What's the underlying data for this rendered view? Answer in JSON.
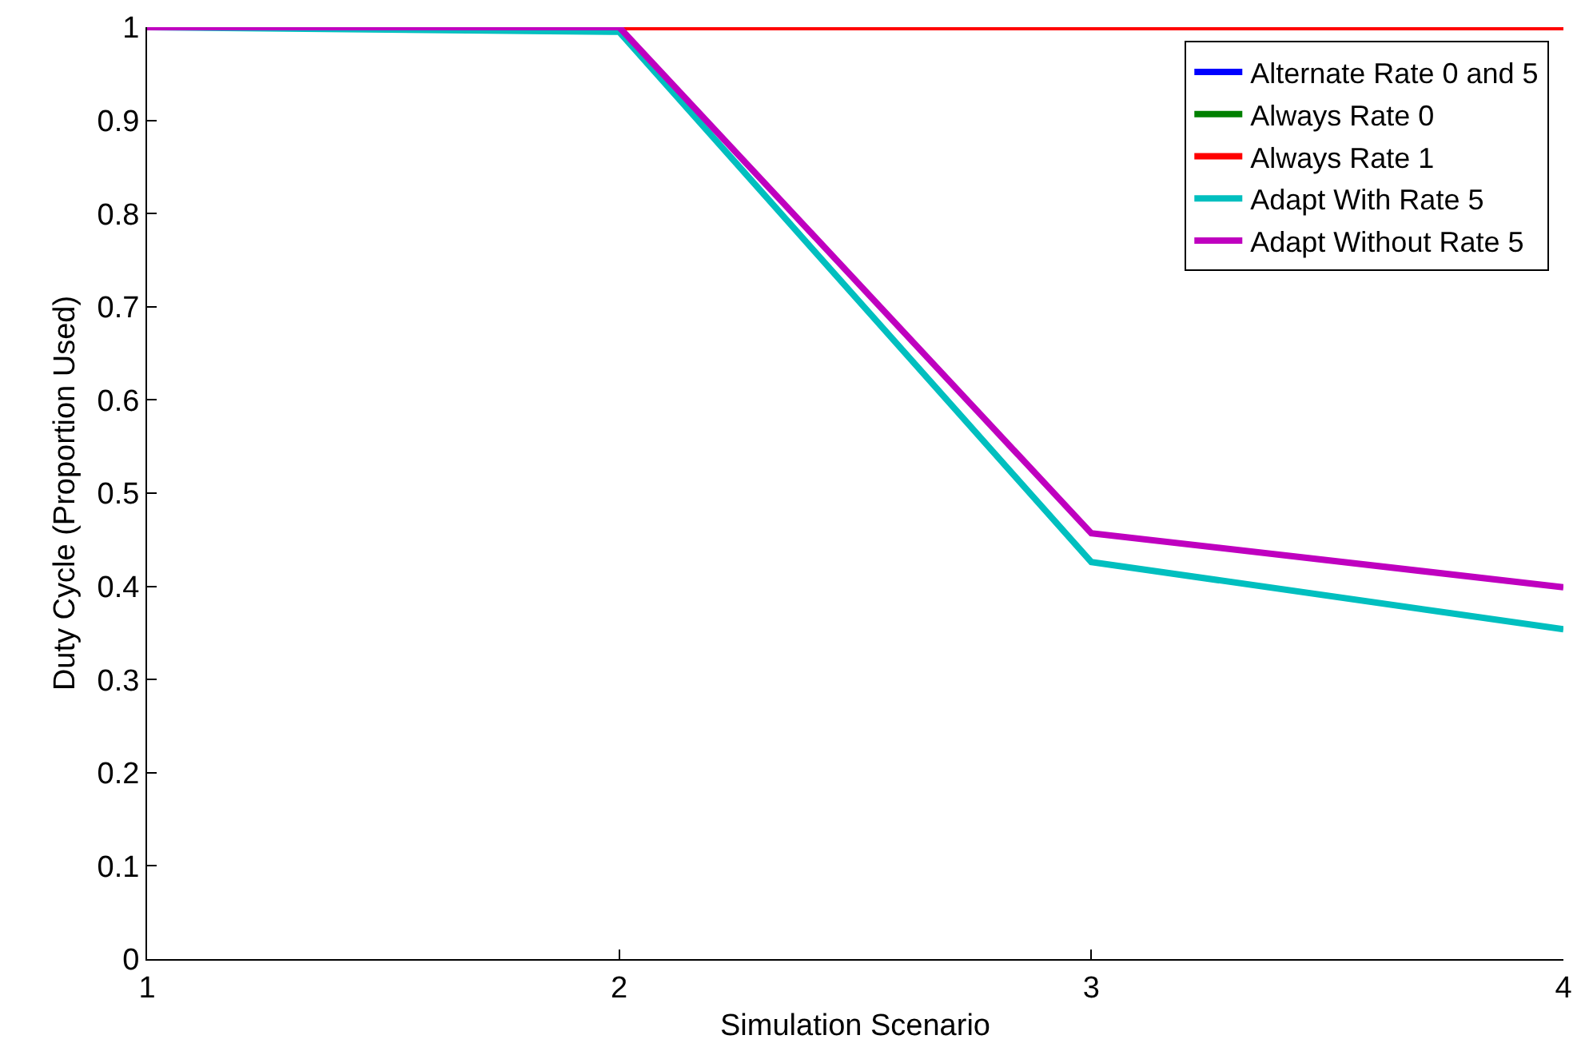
{
  "chart_data": {
    "type": "line",
    "xlabel": "Simulation Scenario",
    "ylabel": "Duty Cycle (Proportion Used)",
    "x": [
      1,
      2,
      3,
      4
    ],
    "series": [
      {
        "name": "Alternate Rate 0 and 5",
        "color": "#0000ff",
        "values": [
          null,
          null,
          null,
          null
        ]
      },
      {
        "name": "Always Rate 0",
        "color": "#008000",
        "values": [
          null,
          null,
          null,
          null
        ]
      },
      {
        "name": "Always Rate 1",
        "color": "#ff0000",
        "values": [
          1,
          1,
          1,
          1
        ]
      },
      {
        "name": "Adapt With Rate 5",
        "color": "#00bfbf",
        "values": [
          1,
          0.995,
          0.426,
          0.354
        ]
      },
      {
        "name": "Adapt Without Rate 5",
        "color": "#bf00bf",
        "values": [
          1,
          1,
          0.457,
          0.399
        ]
      }
    ],
    "xlim": [
      1,
      4
    ],
    "xticks": [
      1,
      2,
      3,
      4
    ],
    "ylim": [
      0,
      1
    ],
    "yticks": [
      0,
      0.1,
      0.2,
      0.3,
      0.4,
      0.5,
      0.6,
      0.7,
      0.8,
      0.9,
      1
    ],
    "grid": false,
    "legend": "top right",
    "marker": "none",
    "line_style": "solid"
  }
}
